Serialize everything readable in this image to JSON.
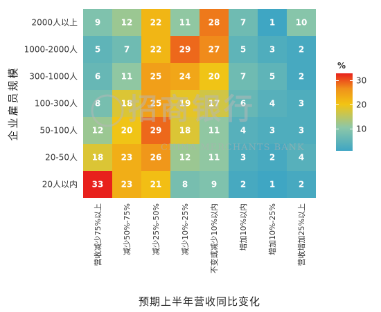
{
  "chart_data": {
    "type": "heatmap",
    "title": "",
    "xlabel": "预期上半年营收同比变化",
    "ylabel": "企业雇员规模",
    "x_categories": [
      "营收减少75%以上",
      "减少50%-75%",
      "减少25%-50%",
      "减少10%-25%",
      "不变或减少10%以内",
      "增加10%以内",
      "增加10%-25%",
      "营收增加25%以上"
    ],
    "y_categories": [
      "2000人以上",
      "1000-2000人",
      "300-1000人",
      "100-300人",
      "50-100人",
      "20-50人",
      "20人以内"
    ],
    "values": [
      [
        9,
        12,
        22,
        11,
        28,
        7,
        1,
        10
      ],
      [
        5,
        7,
        22,
        29,
        27,
        5,
        3,
        2
      ],
      [
        6,
        11,
        25,
        24,
        20,
        7,
        5,
        2
      ],
      [
        8,
        18,
        25,
        19,
        17,
        6,
        4,
        3
      ],
      [
        12,
        20,
        29,
        18,
        11,
        4,
        3,
        3
      ],
      [
        18,
        23,
        26,
        12,
        11,
        3,
        2,
        4
      ],
      [
        33,
        23,
        21,
        8,
        9,
        2,
        1,
        2
      ]
    ],
    "legend": {
      "title": "%",
      "ticks": [
        10,
        20,
        30
      ],
      "range": [
        1,
        33
      ],
      "placement": "right"
    },
    "colors": {
      "low": "#3fa6c3",
      "mid_low": "#8cc7a8",
      "mid": "#f2c413",
      "mid_high": "#f0921b",
      "high": "#e8211c"
    }
  },
  "watermark": {
    "text_cn": "招商银行",
    "text_en": "CHINA MERCHANTS BANK"
  }
}
